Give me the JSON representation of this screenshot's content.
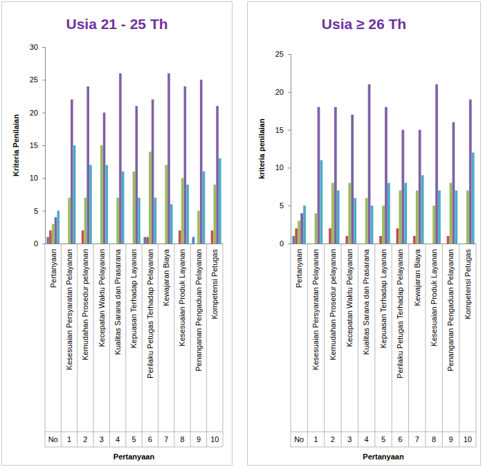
{
  "chart_data": [
    {
      "type": "bar",
      "title": "Usia 21 - 25 Th",
      "x_label": "Pertanyaan",
      "y_label": "Kriteria Penilaian",
      "categories": [
        "Pertanyaan",
        "Kesesuaian Persyaratan Pelayanan",
        "Kemudahan Prosedur pelayanan",
        "Kecepatan Waktu Pelayanan",
        "Kualitas Sarana dan Prasarana",
        "Kepuasan Terhadap Layanan",
        "Perilaku Petugas Terhadap Pelayanan",
        "Kewajaran Biaya",
        "Kesesuaian Produk Layanan",
        "Penanganan Pengaduan Pelayanan",
        "Kompetensi Petugas"
      ],
      "category_numbers": [
        "No",
        "1",
        "2",
        "3",
        "4",
        "5",
        "6",
        "7",
        "8",
        "9",
        "10"
      ],
      "series": [
        {
          "color": "#4F81BD",
          "values": [
            1,
            0,
            0,
            0,
            0,
            0,
            1,
            0,
            0,
            1,
            0
          ]
        },
        {
          "color": "#C0504D",
          "values": [
            2,
            0,
            2,
            0,
            0,
            0,
            1,
            0,
            2,
            0,
            2
          ]
        },
        {
          "color": "#9BBB59",
          "values": [
            3,
            7,
            7,
            15,
            7,
            11,
            14,
            12,
            10,
            5,
            9
          ]
        },
        {
          "color": "#7E62A6",
          "values": [
            4,
            22,
            24,
            20,
            26,
            21,
            22,
            26,
            24,
            25,
            21
          ]
        },
        {
          "color": "#4BACC6",
          "values": [
            5,
            15,
            12,
            12,
            11,
            7,
            7,
            6,
            9,
            11,
            13
          ]
        }
      ],
      "ylim": [
        0,
        30
      ],
      "yticks": [
        0,
        5,
        10,
        15,
        20,
        25,
        30
      ],
      "grid": false
    },
    {
      "type": "bar",
      "title": "Usia ≥ 26 Th",
      "x_label": "Pertanyaan",
      "y_label": "kriteria penilaian",
      "categories": [
        "Pertanyaan",
        "Kesesuaian Persyaratan Pelayanan",
        "Kemudahan Prosedur pelayanan",
        "Kecepatan Waktu Pelayanan",
        "Kualitas Sarana dan Prasarana",
        "Kepuasan Terhadap Layanan",
        "Perilaku Petugas Terhadap Pelayanan",
        "Kewajaran Biaya",
        "Kesesuaian Produk Layanan",
        "Penanganan Pengaduan Pelayanan",
        "Kompetensi Petugas"
      ],
      "category_numbers": [
        "No",
        "1",
        "2",
        "3",
        "4",
        "5",
        "6",
        "7",
        "8",
        "9",
        "10"
      ],
      "series": [
        {
          "color": "#4F81BD",
          "values": [
            1,
            0,
            0,
            0,
            0,
            0,
            0,
            0,
            0,
            0,
            0
          ]
        },
        {
          "color": "#C0504D",
          "values": [
            2,
            0,
            2,
            1,
            0,
            1,
            2,
            1,
            0,
            1,
            0
          ]
        },
        {
          "color": "#9BBB59",
          "values": [
            3,
            4,
            8,
            8,
            6,
            5,
            7,
            7,
            5,
            8,
            7
          ]
        },
        {
          "color": "#7E62A6",
          "values": [
            4,
            18,
            18,
            17,
            21,
            18,
            15,
            15,
            21,
            16,
            19
          ]
        },
        {
          "color": "#4BACC6",
          "values": [
            5,
            11,
            7,
            6,
            5,
            8,
            8,
            9,
            7,
            7,
            12
          ]
        }
      ],
      "ylim": [
        0,
        25
      ],
      "yticks": [
        0,
        5,
        10,
        15,
        20,
        25
      ],
      "grid": false
    }
  ]
}
